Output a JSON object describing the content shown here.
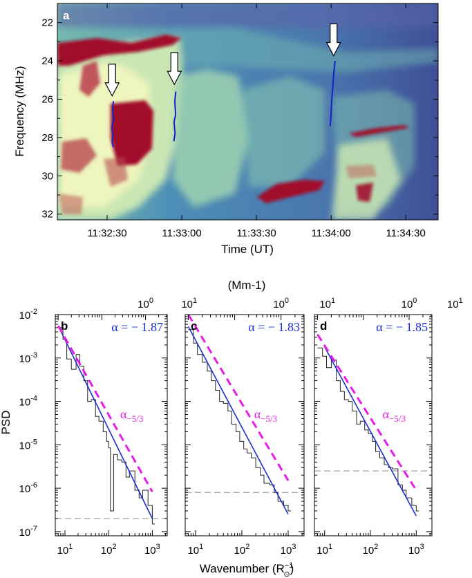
{
  "chart_data": [
    {
      "type": "heatmap",
      "panel": "a",
      "xlabel": "Time (UT)",
      "ylabel": "Frequency (MHz)",
      "x_ticks": [
        "11:32:30",
        "11:33:00",
        "11:33:30",
        "11:34:00",
        "11:34:30"
      ],
      "x_tick_seconds": [
        150,
        180,
        210,
        240,
        270
      ],
      "xlim_seconds": [
        130,
        283
      ],
      "y_ticks": [
        22,
        24,
        26,
        28,
        30,
        32
      ],
      "ylim": [
        21.0,
        32.3
      ],
      "y_inverted": true,
      "arrows": [
        {
          "time_s": 152,
          "freq": 25.9
        },
        {
          "time_s": 177,
          "freq": 25.3
        },
        {
          "time_s": 241,
          "freq": 23.8
        }
      ],
      "drift_tracks": [
        {
          "time": [
            152.5,
            152.2,
            152.6,
            151.9,
            152.4,
            152.0,
            152.5
          ],
          "freq": [
            26.1,
            26.6,
            27.0,
            27.5,
            27.9,
            28.2,
            28.5
          ]
        },
        {
          "time": [
            177.6,
            177.2,
            177.5,
            176.9,
            177.3,
            176.8
          ],
          "freq": [
            25.6,
            26.1,
            26.8,
            27.2,
            27.8,
            28.2
          ]
        },
        {
          "time": [
            241.6,
            241.1,
            240.7,
            240.2,
            240.0,
            239.6
          ],
          "freq": [
            24.0,
            24.6,
            25.3,
            26.1,
            26.8,
            27.4
          ]
        }
      ],
      "colors": {
        "background": "#3d4e95",
        "low": "#4a8bb5",
        "mid": "#c8e6b4",
        "high": "#a1102b"
      }
    },
    {
      "type": "line",
      "panel": "b",
      "alpha_text": "α = − 1.87",
      "ref_label": "α",
      "ref_sub": "−5/3",
      "fit": {
        "exponent": -1.87,
        "x": [
          7,
          1000
        ],
        "y": [
          0.0055,
          2e-07
        ]
      },
      "ref": {
        "exponent": -1.667,
        "x": [
          7,
          1000
        ],
        "y": [
          0.0055,
          8.3e-07
        ]
      },
      "noise_level": 2e-07,
      "psd_x": [
        7,
        9,
        11,
        14,
        18,
        22,
        27,
        33,
        40,
        50,
        60,
        75,
        90,
        100,
        110,
        130,
        160,
        200,
        250,
        300,
        400,
        500,
        600,
        800,
        1000
      ],
      "psd_y": [
        0.005,
        0.0027,
        0.00095,
        0.00055,
        0.0012,
        0.00065,
        0.0003,
        0.0001,
        0.00011,
        4.5e-05,
        3.5e-05,
        2e-05,
        1.2e-05,
        8.5e-06,
        3e-07,
        6e-06,
        4.5e-06,
        4e-06,
        1.8e-06,
        2.5e-06,
        9e-07,
        6e-07,
        9e-07,
        4e-07,
        1.5e-07
      ]
    },
    {
      "type": "line",
      "panel": "c",
      "alpha_text": "α = − 1.83",
      "ref_label": "α",
      "ref_sub": "−5/3",
      "fit": {
        "exponent": -1.83,
        "x": [
          7,
          1000
        ],
        "y": [
          0.0053,
          2.5e-07
        ]
      },
      "ref": {
        "exponent": -1.667,
        "x": [
          7,
          1000
        ],
        "y": [
          0.01,
          1.5e-06
        ]
      },
      "noise_level": 8e-07,
      "psd_x": [
        7,
        9,
        11,
        14,
        18,
        22,
        27,
        33,
        40,
        50,
        60,
        75,
        90,
        110,
        130,
        160,
        200,
        250,
        300,
        400,
        500,
        600,
        800,
        1000
      ],
      "psd_y": [
        0.0045,
        0.0022,
        0.0012,
        0.0008,
        0.0005,
        0.0003,
        0.00018,
        0.0001,
        9e-05,
        6e-05,
        3e-05,
        2e-05,
        1.2e-05,
        8e-06,
        6.5e-06,
        5e-06,
        3e-06,
        2e-06,
        1.3e-06,
        1.2e-06,
        8e-07,
        5e-07,
        4e-07,
        3e-07
      ]
    },
    {
      "type": "line",
      "panel": "d",
      "alpha_text": "α = − 1.85",
      "ref_label": "α",
      "ref_sub": "−5/3",
      "fit": {
        "exponent": -1.85,
        "x": [
          10,
          1000
        ],
        "y": [
          0.0018,
          2.3e-07
        ]
      },
      "ref": {
        "exponent": -1.667,
        "x": [
          7,
          1000
        ],
        "y": [
          0.0035,
          9e-07
        ]
      },
      "noise_level": 2.5e-06,
      "psd_x": [
        7,
        9,
        11,
        14,
        18,
        22,
        27,
        33,
        40,
        50,
        60,
        75,
        90,
        110,
        130,
        160,
        200,
        250,
        300,
        400,
        500,
        600,
        800,
        1000
      ],
      "psd_y": [
        0.0017,
        0.0011,
        0.0006,
        0.0009,
        0.0003,
        0.00017,
        0.00011,
        0.0001,
        6e-05,
        3e-05,
        3.5e-05,
        2.2e-05,
        1.8e-05,
        1.2e-05,
        7e-06,
        5e-06,
        3.5e-06,
        3e-06,
        2.8e-06,
        1.2e-06,
        9e-07,
        6e-07,
        4e-07,
        3e-07
      ]
    }
  ],
  "shared": {
    "psd_ylabel": "PSD",
    "psd_xlabel": "Wavenumber (R",
    "psd_xlabel_sup": "−1",
    "psd_xlabel_sub": "⊙",
    "psd_xlabel_end": ")",
    "top_axis_label": "(Mm-1)",
    "top_ticks": [
      {
        "base": "10",
        "exp": "0",
        "at_wavenumber": 700
      },
      {
        "base": "10",
        "exp": "1",
        "at_wavenumber": 7000
      }
    ],
    "psd_x_ticks": [
      {
        "base": "10",
        "exp": "1",
        "value": 10
      },
      {
        "base": "10",
        "exp": "2",
        "value": 100
      },
      {
        "base": "10",
        "exp": "3",
        "value": 1000
      }
    ],
    "psd_y_ticks": [
      {
        "base": "10",
        "exp": "-2",
        "value": 0.01
      },
      {
        "base": "10",
        "exp": "-3",
        "value": 0.001
      },
      {
        "base": "10",
        "exp": "-4",
        "value": 0.0001
      },
      {
        "base": "10",
        "exp": "-5",
        "value": 1e-05
      },
      {
        "base": "10",
        "exp": "-6",
        "value": 1e-06
      },
      {
        "base": "10",
        "exp": "-7",
        "value": 1e-07
      }
    ],
    "psd_xlim": [
      6,
      2200
    ],
    "psd_ylim": [
      8e-08,
      0.01
    ],
    "fit_color": "#1a2ed6",
    "ref_color": "#e81be8",
    "noise_color": "#a0a0a0",
    "psd_color": "#222222"
  }
}
